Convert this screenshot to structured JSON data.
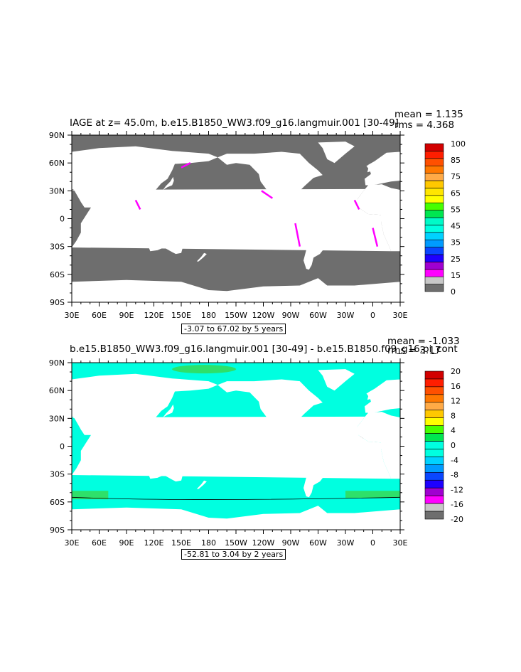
{
  "colors": {
    "land": "#ffffff",
    "ocean_gray": "#6e6e6e",
    "teal": "#00ffe0",
    "zero_band": "#2ee06a"
  },
  "panels": [
    {
      "title": "IAGE at z=  45.0m, b.e15.B1850_WW3.f09_g16.langmuir.001 [30-49]",
      "mean": "mean = 1.135",
      "rms": "rms = 4.368",
      "contour_info": "-3.07 to 67.02 by 5 years"
    },
    {
      "title": "b.e15.B1850_WW3.f09_g16.langmuir.001 [30-49] - b.e15.B1850.f09_g16.pi_cont",
      "mean": "mean = -1.033",
      "rms": "rms = 3.17",
      "contour_info": "-52.81 to 3.04 by 2 years"
    }
  ],
  "chart_data": [
    {
      "type": "heatmap",
      "title": "IAGE at z=  45.0m, b.e15.B1850_WW3.f09_g16.langmuir.001 [30-49]",
      "xlabel": "",
      "ylabel": "",
      "x_ticks": [
        "30E",
        "60E",
        "90E",
        "120E",
        "150E",
        "180",
        "150W",
        "120W",
        "90W",
        "60W",
        "30W",
        "0",
        "30E"
      ],
      "y_ticks": [
        "90N",
        "60N",
        "30N",
        "0",
        "30S",
        "60S",
        "90S"
      ],
      "colorbar": {
        "levels": [
          "0",
          "15",
          "25",
          "35",
          "45",
          "55",
          "65",
          "75",
          "85",
          "100"
        ],
        "colors": [
          "#6e6e6e",
          "#c8c8c8",
          "#ff00ff",
          "#a000d0",
          "#1e00ff",
          "#0a46ff",
          "#009bff",
          "#00d2ff",
          "#00ffe0",
          "#00fac8",
          "#00e650",
          "#46ff00",
          "#ffff00",
          "#ffe600",
          "#ffc800",
          "#ffaa46",
          "#ff7800",
          "#ff5000",
          "#ff1e00",
          "#d20000"
        ]
      },
      "stats": {
        "mean": 1.135,
        "rms": 4.368
      },
      "contour_range": [
        -3.07,
        67.02
      ],
      "contour_interval": 5
    },
    {
      "type": "heatmap",
      "title": "b.e15.B1850_WW3.f09_g16.langmuir.001 [30-49] - b.e15.B1850.f09_g16.pi_cont",
      "xlabel": "",
      "ylabel": "",
      "x_ticks": [
        "30E",
        "60E",
        "90E",
        "120E",
        "150E",
        "180",
        "150W",
        "120W",
        "90W",
        "60W",
        "30W",
        "0",
        "30E"
      ],
      "y_ticks": [
        "90N",
        "60N",
        "30N",
        "0",
        "30S",
        "60S",
        "90S"
      ],
      "colorbar": {
        "levels": [
          "20",
          "16",
          "12",
          "8",
          "4",
          "0",
          "-4",
          "-8",
          "-12",
          "-16",
          "-20"
        ],
        "colors": [
          "#d20000",
          "#ff1e00",
          "#ff5000",
          "#ff7800",
          "#ffaa46",
          "#ffc800",
          "#ffff00",
          "#46ff00",
          "#00e650",
          "#00ffe0",
          "#00ffe0",
          "#00d2ff",
          "#009bff",
          "#0a46ff",
          "#1e00ff",
          "#a000d0",
          "#ff00ff",
          "#c8c8c8",
          "#6e6e6e"
        ]
      },
      "stats": {
        "mean": -1.033,
        "rms": 3.17
      },
      "contour_range": [
        -52.81,
        3.04
      ],
      "contour_interval": 2
    }
  ]
}
